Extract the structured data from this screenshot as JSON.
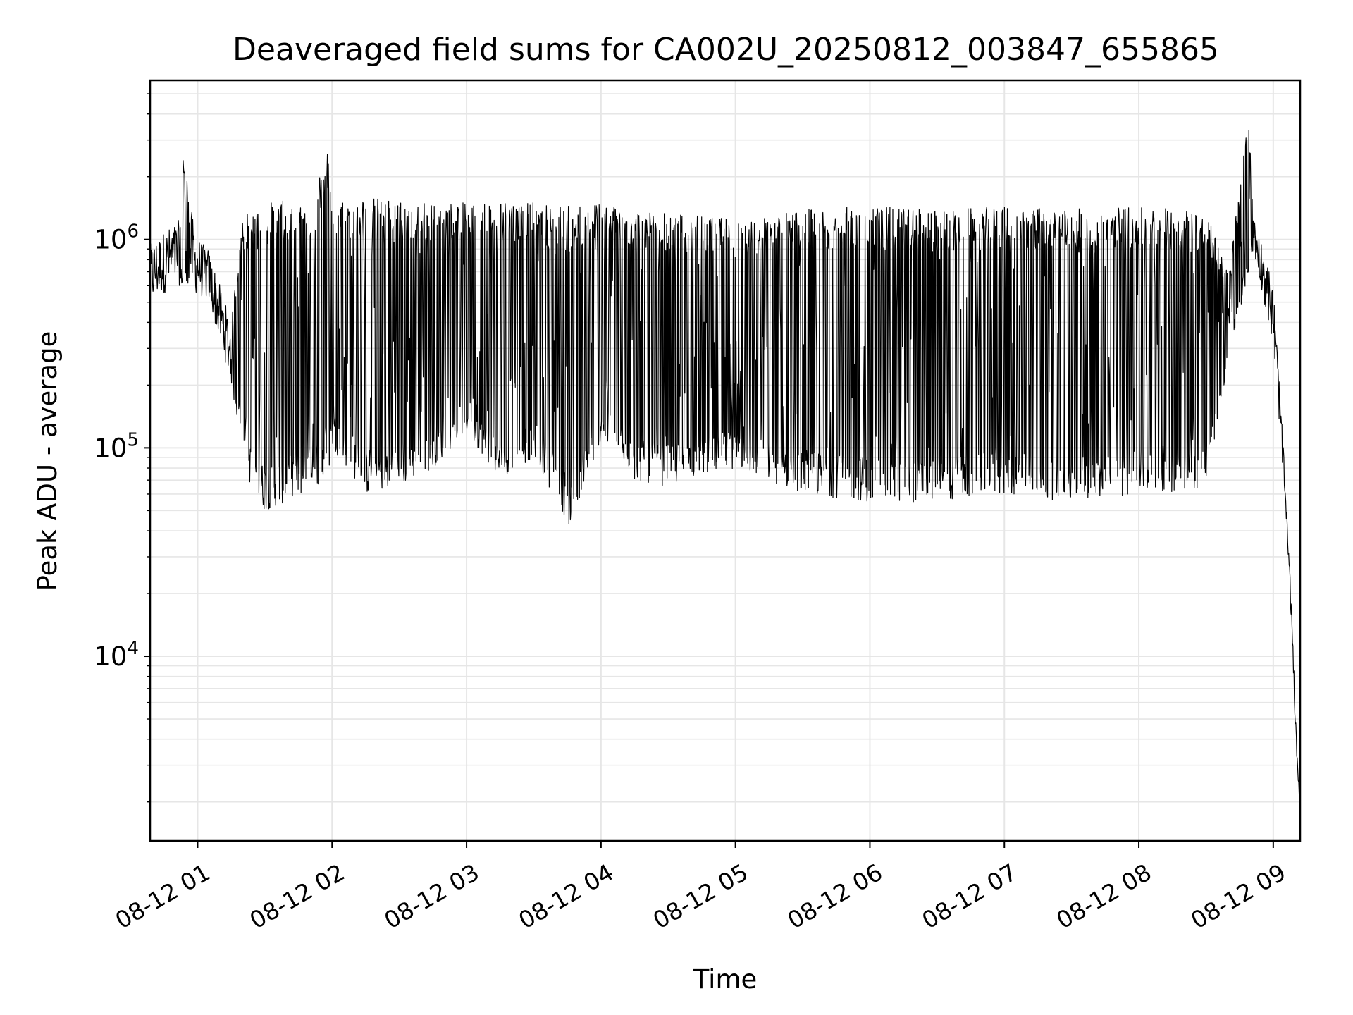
{
  "chart_data": {
    "type": "line",
    "title": "Deaveraged field sums for CA002U_20250812_003847_655865",
    "xlabel": "Time",
    "ylabel": "Peak ADU - average",
    "x_range": [
      "2025-08-12T00:38:47",
      "2025-08-12T09:12:00"
    ],
    "ylim": [
      1300,
      5800000
    ],
    "y_scale": "log",
    "x_ticks": [
      {
        "value": "2025-08-12T01:00:00",
        "label": "08-12 01"
      },
      {
        "value": "2025-08-12T02:00:00",
        "label": "08-12 02"
      },
      {
        "value": "2025-08-12T03:00:00",
        "label": "08-12 03"
      },
      {
        "value": "2025-08-12T04:00:00",
        "label": "08-12 04"
      },
      {
        "value": "2025-08-12T05:00:00",
        "label": "08-12 05"
      },
      {
        "value": "2025-08-12T06:00:00",
        "label": "08-12 06"
      },
      {
        "value": "2025-08-12T07:00:00",
        "label": "08-12 07"
      },
      {
        "value": "2025-08-12T08:00:00",
        "label": "08-12 08"
      },
      {
        "value": "2025-08-12T09:00:00",
        "label": "08-12 09"
      }
    ],
    "y_ticks": [
      {
        "value": 10000,
        "base": "10",
        "exp": "4"
      },
      {
        "value": 100000,
        "base": "10",
        "exp": "5"
      },
      {
        "value": 1000000,
        "base": "10",
        "exp": "6"
      }
    ],
    "grid": true,
    "line_color": "#000000",
    "grid_color": "#e6e6e6",
    "series": [
      {
        "x": [
          "2025-08-12T00:38:47",
          "2025-08-12T00:45:00",
          "2025-08-12T00:52:00",
          "2025-08-12T00:53:00",
          "2025-08-12T00:59:00",
          "2025-08-12T01:05:00",
          "2025-08-12T01:10:00",
          "2025-08-12T01:15:00",
          "2025-08-12T01:20:00",
          "2025-08-12T01:25:00",
          "2025-08-12T01:30:00",
          "2025-08-12T01:40:00",
          "2025-08-12T01:50:00",
          "2025-08-12T01:58:00",
          "2025-08-12T02:00:00",
          "2025-08-12T02:15:00",
          "2025-08-12T02:30:00",
          "2025-08-12T02:45:00",
          "2025-08-12T03:00:00",
          "2025-08-12T03:15:00",
          "2025-08-12T03:30:00",
          "2025-08-12T03:47:00",
          "2025-08-12T04:00:00",
          "2025-08-12T04:15:00",
          "2025-08-12T04:30:00",
          "2025-08-12T04:45:00",
          "2025-08-12T05:00:00",
          "2025-08-12T05:30:00",
          "2025-08-12T06:00:00",
          "2025-08-12T06:30:00",
          "2025-08-12T07:00:00",
          "2025-08-12T07:30:00",
          "2025-08-12T08:00:00",
          "2025-08-12T08:20:00",
          "2025-08-12T08:30:00",
          "2025-08-12T08:40:00",
          "2025-08-12T08:49:00",
          "2025-08-12T08:52:00",
          "2025-08-12T08:56:00",
          "2025-08-12T09:00:00",
          "2025-08-12T09:03:00",
          "2025-08-12T09:06:00",
          "2025-08-12T09:08:00",
          "2025-08-12T09:10:00",
          "2025-08-12T09:12:00"
        ],
        "low": [
          480000,
          550000,
          600000,
          600000,
          550000,
          500000,
          320000,
          200000,
          100000,
          55000,
          50000,
          55000,
          62000,
          70000,
          100000,
          60000,
          65000,
          80000,
          120000,
          70000,
          90000,
          40000,
          110000,
          70000,
          65000,
          75000,
          80000,
          60000,
          55000,
          55000,
          60000,
          55000,
          60000,
          62000,
          65000,
          260000,
          700000,
          800000,
          500000,
          300000,
          120000,
          40000,
          15000,
          4000,
          1800
        ],
        "high": [
          950000,
          1100000,
          1250000,
          2800000,
          1050000,
          900000,
          600000,
          400000,
          1300000,
          1400000,
          1500000,
          1550000,
          1600000,
          2700000,
          1550000,
          1600000,
          1550000,
          1500000,
          1500000,
          1550000,
          1500000,
          1450000,
          1550000,
          1400000,
          1350000,
          1300000,
          1250000,
          1400000,
          1450000,
          1400000,
          1450000,
          1400000,
          1450000,
          1400000,
          1350000,
          700000,
          3900000,
          1200000,
          900000,
          600000,
          200000,
          50000,
          20000,
          5000,
          1800
        ]
      }
    ]
  }
}
